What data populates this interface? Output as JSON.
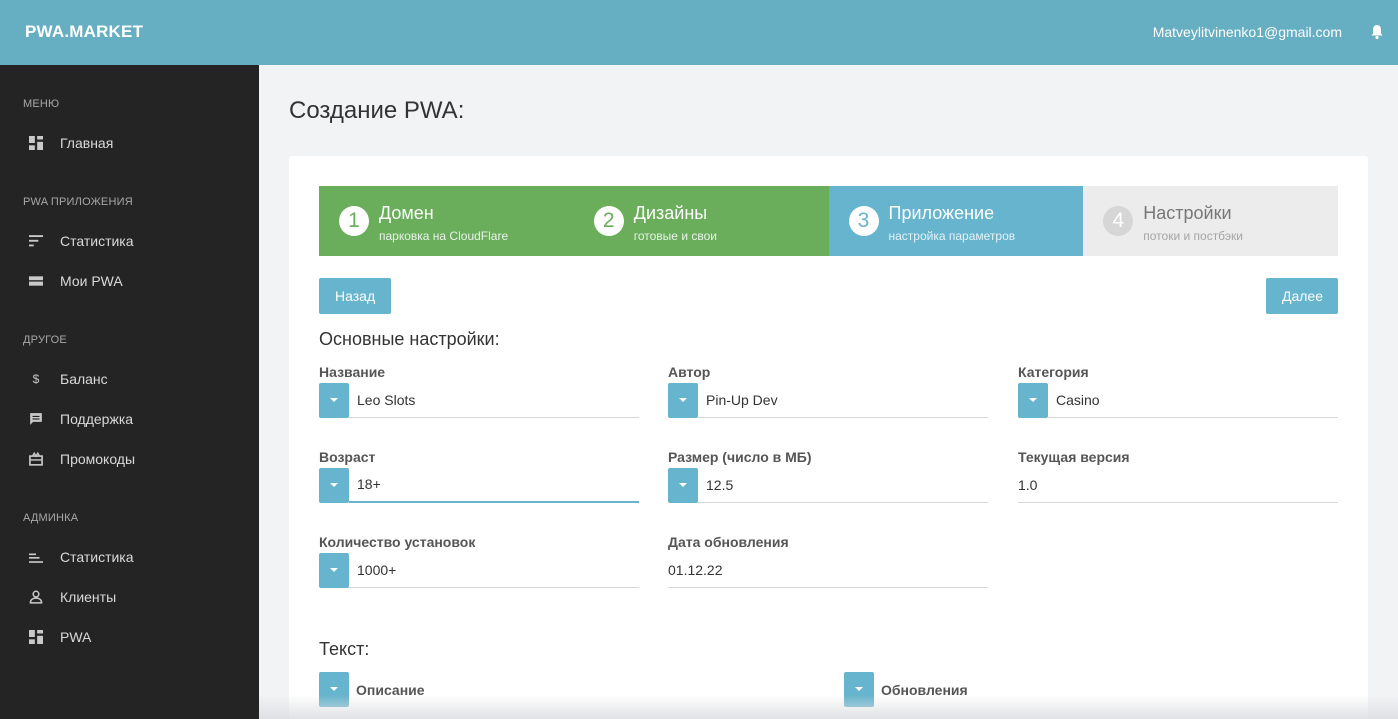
{
  "header": {
    "brand": "PWA.MARKET",
    "user_email": "Matveylitvinenko1@gmail.com",
    "bell_icon": "bell-icon"
  },
  "sidebar": {
    "sections": [
      {
        "title": "МЕНЮ",
        "items": [
          {
            "label": "Главная",
            "icon": "dashboard-icon"
          }
        ]
      },
      {
        "title": "PWA ПРИЛОЖЕНИЯ",
        "items": [
          {
            "label": "Статистика",
            "icon": "sort-icon"
          },
          {
            "label": "Мои PWA",
            "icon": "table-icon"
          }
        ]
      },
      {
        "title": "ДРУГОЕ",
        "items": [
          {
            "label": "Баланс",
            "icon": "dollar-icon"
          },
          {
            "label": "Поддержка",
            "icon": "chat-icon"
          },
          {
            "label": "Промокоды",
            "icon": "gift-icon"
          }
        ]
      },
      {
        "title": "АДМИНКА",
        "items": [
          {
            "label": "Статистика",
            "icon": "bar-chart-icon"
          },
          {
            "label": "Клиенты",
            "icon": "user-icon"
          },
          {
            "label": "PWA",
            "icon": "dashboard-icon"
          }
        ]
      }
    ]
  },
  "page": {
    "title": "Создание PWA:"
  },
  "steps": [
    {
      "num": "1",
      "title": "Домен",
      "sub": "парковка на CloudFlare",
      "state": "done"
    },
    {
      "num": "2",
      "title": "Дизайны",
      "sub": "готовые и свои",
      "state": "done"
    },
    {
      "num": "3",
      "title": "Приложение",
      "sub": "настройка параметров",
      "state": "active"
    },
    {
      "num": "4",
      "title": "Настройки",
      "sub": "потоки и постбэки",
      "state": "todo"
    }
  ],
  "buttons": {
    "back": "Назад",
    "next": "Далее"
  },
  "basic": {
    "title": "Основные настройки:",
    "fields": {
      "name": {
        "label": "Название",
        "value": "Leo Slots"
      },
      "author": {
        "label": "Автор",
        "value": "Pin-Up Dev"
      },
      "category": {
        "label": "Категория",
        "value": "Casino"
      },
      "age": {
        "label": "Возраст",
        "value": "18+"
      },
      "size": {
        "label": "Размер (число в МБ)",
        "value": "12.5"
      },
      "version": {
        "label": "Текущая версия",
        "value": "1.0"
      },
      "installs": {
        "label": "Количество установок",
        "value": "1000+"
      },
      "updated": {
        "label": "Дата обновления",
        "value": "01.12.22"
      }
    }
  },
  "text": {
    "title": "Текст:",
    "description_label": "Описание",
    "updates_label": "Обновления"
  }
}
